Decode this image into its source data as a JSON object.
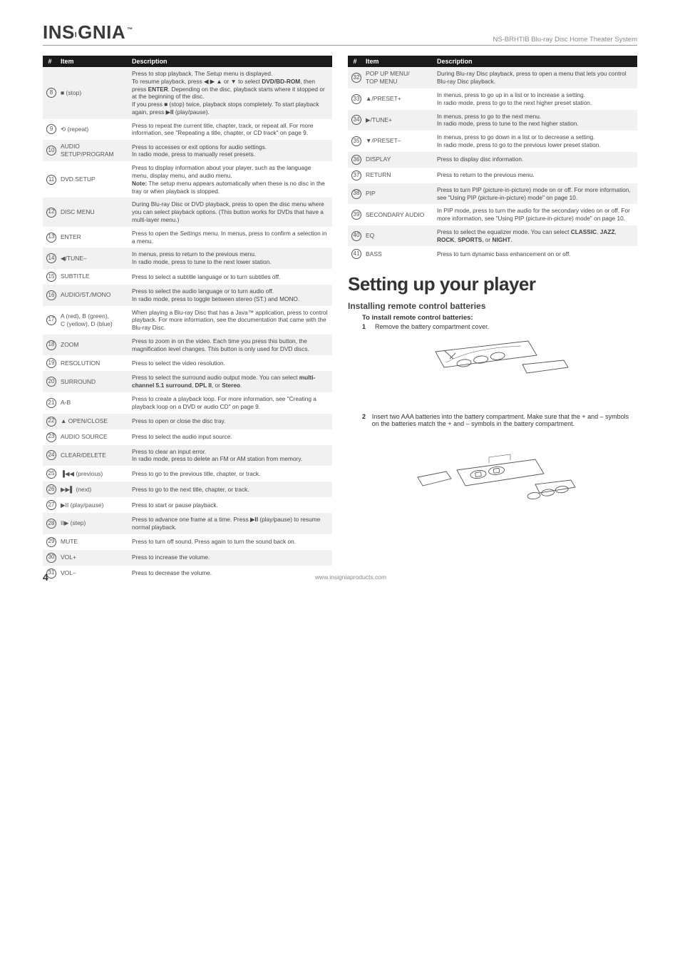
{
  "header": {
    "logo_pre": "INS",
    "logo_post": "GNIA",
    "product": "NS-BRHTIB Blu-ray Disc Home Theater System"
  },
  "table_headers": {
    "num": "#",
    "item": "Item",
    "desc": "Description"
  },
  "left_table": [
    {
      "n": "8",
      "item": "■ (stop)",
      "desc": "Press to stop playback. The <i>Setup</i> menu is displayed.<br>To resume playback, press ◀ ▶ ▲ or ▼ to select <b>DVD/BD-ROM</b>, then press <b>ENTER</b>. Depending on the disc, playback starts where it stopped or at the beginning of the disc.<br>If you press ■ (stop) twice, playback stops completely. To start playback again, press ▶<b>II</b> (play/pause)."
    },
    {
      "n": "9",
      "item": "⟲ (repeat)",
      "desc": "Press to repeat the current title, chapter, track, or repeat all. For more information, see \"Repeating a title, chapter, or CD track\" on page 9."
    },
    {
      "n": "10",
      "item": "AUDIO SETUP/PROGRAM",
      "desc": "Press to accesses or exit options for audio settings.<br>In radio mode, press to manually reset presets."
    },
    {
      "n": "11",
      "item": "DVD SETUP",
      "desc": "Press to display information about your player, such as the language menu, display menu, and audio menu.<br><b>Note:</b> The setup menu appears automatically when these is no disc in the tray or when playback is stopped."
    },
    {
      "n": "12",
      "item": "DISC MENU",
      "desc": "During Blu-ray Disc or DVD playback, press to open the disc menu where you can select playback options. (This button works for DVDs that have a multi-layer menu.)"
    },
    {
      "n": "13",
      "item": "ENTER",
      "desc": "Press to open the <i>Settings</i> menu. In menus, press to confirm a selection in a menu."
    },
    {
      "n": "14",
      "item": "◀/TUNE–",
      "desc": "In menus, press to return to the previous menu.<br>In radio mode, press to tune to the next lower station."
    },
    {
      "n": "15",
      "item": "SUBTITLE",
      "desc": "Press to select a subtitle language or to turn subtitles off."
    },
    {
      "n": "16",
      "item": "AUDIO/ST./MONO",
      "desc": "Press to select the audio language or to turn audio off.<br>In radio mode, press to toggle between stereo (ST.) and MONO."
    },
    {
      "n": "17",
      "item": "A (red), B (green),\nC (yellow), D (blue)",
      "desc": "When playing a Blu-ray Disc that has a Java™ application, press to control playback. For more information, see the documentation that came with the Blu-ray Disc."
    },
    {
      "n": "18",
      "item": "ZOOM",
      "desc": "Press to zoom in on the video. Each time you press this button, the magnification level changes. This button is only used for DVD discs."
    },
    {
      "n": "19",
      "item": "RESOLUTION",
      "desc": "Press to select the video resolution."
    },
    {
      "n": "20",
      "item": "SURROUND",
      "desc": "Press to select the surround audio output mode. You can select <b>multi-channel 5.1 surround</b>, <b>DPL II</b>, or <b>Stereo</b>."
    },
    {
      "n": "21",
      "item": "A-B",
      "desc": "Press to create a playback loop. For more information, see \"Creating a playback loop on a DVD or audio CD\" on page 9."
    },
    {
      "n": "22",
      "item": "▲ OPEN/CLOSE",
      "desc": "Press to open or close the disc tray."
    },
    {
      "n": "23",
      "item": "AUDIO SOURCE",
      "desc": "Press to select the audio input source."
    },
    {
      "n": "24",
      "item": "CLEAR/DELETE",
      "desc": "Press to clear an input error.<br>In radio mode, press to delete an FM or AM station from memory."
    },
    {
      "n": "25",
      "item": "▐◀◀ (previous)",
      "desc": "Press to go to the previous title, chapter, or track."
    },
    {
      "n": "26",
      "item": "▶▶▌ (next)",
      "desc": "Press to go to the next title, chapter, or track."
    },
    {
      "n": "27",
      "item": "▶II (play/pause)",
      "desc": "Press to start or pause playback."
    },
    {
      "n": "28",
      "item": "II▶ (step)",
      "desc": "Press to advance one frame at a time. Press ▶<b>II</b> (play/pause) to resume normal playback."
    },
    {
      "n": "29",
      "item": "MUTE",
      "desc": "Press to turn off sound. Press again to turn the sound back on."
    },
    {
      "n": "30",
      "item": "VOL+",
      "desc": "Press to increase the volume."
    },
    {
      "n": "31",
      "item": "VOL–",
      "desc": "Press to decrease the volume."
    }
  ],
  "right_table": [
    {
      "n": "32",
      "item": "POP UP MENU/\nTOP MENU",
      "desc": "During Blu-ray Disc playback, press to open a menu that lets you control Blu-ray Disc playback."
    },
    {
      "n": "33",
      "item": "▲/PRESET+",
      "desc": "In menus, press to go up in a list or to increase a setting.<br>In radio mode, press to go to the next higher preset station."
    },
    {
      "n": "34",
      "item": "▶/TUNE+",
      "desc": "In menus, press to go to the next menu.<br>In radio mode, press to tune to the next higher station."
    },
    {
      "n": "35",
      "item": "▼/PRESET–",
      "desc": "In menus, press to go down in a list or to decrease a setting.<br>In radio mode, press to go to the previous lower preset station."
    },
    {
      "n": "36",
      "item": "DISPLAY",
      "desc": "Press to display disc information."
    },
    {
      "n": "37",
      "item": "RETURN",
      "desc": "Press to return to the previous menu."
    },
    {
      "n": "38",
      "item": "PIP",
      "desc": "Press to turn PIP (picture-in-picture) mode on or off. For more information, see \"Using PIP (picture-in-picture) mode\" on page 10."
    },
    {
      "n": "39",
      "item": "SECONDARY AUDIO",
      "desc": "In PIP mode, press to turn the audio for the secondary video on or off. For more information, see \"Using PIP (picture-in-picture) mode\" on page 10."
    },
    {
      "n": "40",
      "item": "EQ",
      "desc": "Press to select the equalizer mode. You can select <b>CLASSIC</b>, <b>JAZZ</b>, <b>ROCK</b>, <b>SPORTS</b>, or <b>NIGHT</b>."
    },
    {
      "n": "41",
      "item": "BASS",
      "desc": "Press to turn dynamic bass enhancement on or off."
    }
  ],
  "section": {
    "title": "Setting up your player",
    "sub": "Installing remote control batteries",
    "instr": "To install remote control batteries:",
    "step1": "Remove the battery compartment cover.",
    "step2": "Insert two AAA batteries into the battery compartment. Make sure that the + and – symbols on the batteries match the + and – symbols in the battery compartment."
  },
  "footer": {
    "pagenum": "4",
    "link": "www.insigniaproducts.com"
  }
}
